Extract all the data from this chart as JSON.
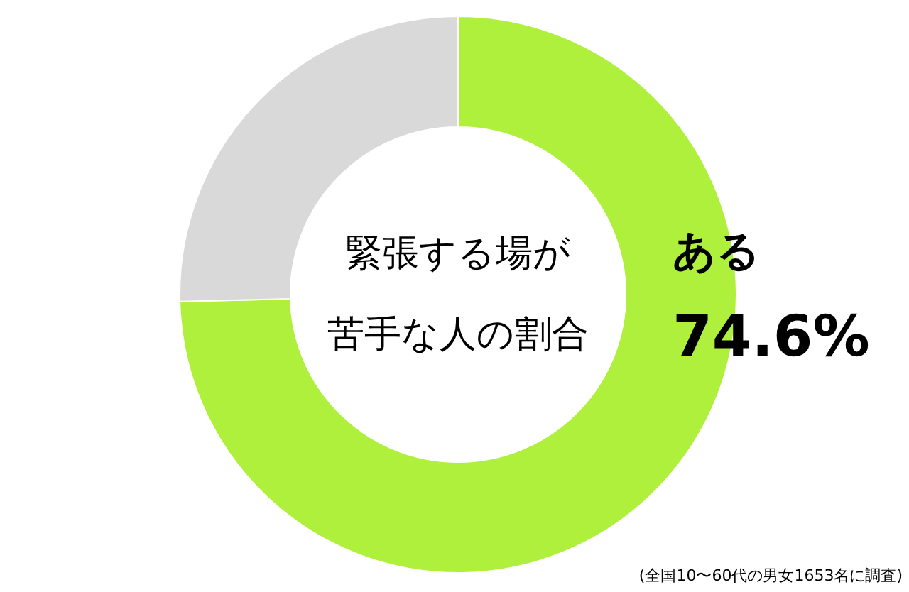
{
  "chart_data": {
    "type": "donut",
    "title": "緊張する場が苦手な人の割合",
    "categories": [
      "ある",
      null
    ],
    "values": [
      74.6,
      25.4
    ],
    "colors": [
      "#aef03c",
      "#d9d9d9"
    ],
    "value_labels": [
      "74.6%",
      null
    ],
    "annotations": [
      "(全国10〜60代の男女1653名に調査)"
    ]
  }
}
